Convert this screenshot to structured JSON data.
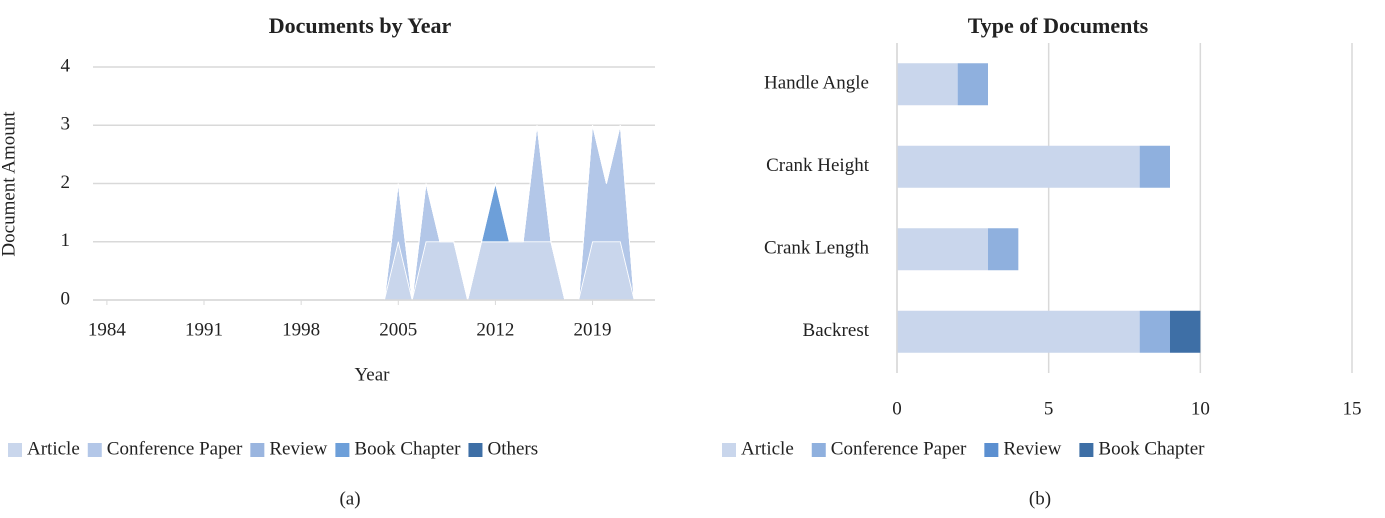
{
  "chart_data": [
    {
      "type": "area",
      "title": "Documents by Year",
      "x_label": "Year",
      "y_label": "Document Amount",
      "x": [
        1984,
        1985,
        1986,
        1987,
        1988,
        1989,
        1990,
        1991,
        1992,
        1993,
        1994,
        1995,
        1996,
        1997,
        1998,
        1999,
        2000,
        2001,
        2002,
        2003,
        2004,
        2005,
        2006,
        2007,
        2008,
        2009,
        2010,
        2011,
        2012,
        2013,
        2014,
        2015,
        2016,
        2017,
        2018,
        2019,
        2020,
        2021,
        2022,
        2023
      ],
      "xlim": [
        1983,
        2023.5
      ],
      "xticks": [
        1984,
        1991,
        1998,
        2005,
        2012,
        2019
      ],
      "ylim": [
        0,
        4
      ],
      "yticks": [
        0,
        1,
        2,
        3,
        4
      ],
      "grid": true,
      "legend": "bottom",
      "series": [
        {
          "name": "Article",
          "color": "#c9d6ec",
          "values": [
            0,
            0,
            0,
            0,
            0,
            0,
            0,
            0,
            0,
            0,
            0,
            0,
            0,
            0,
            0,
            0,
            0,
            0,
            0,
            0,
            0,
            1,
            0,
            1,
            1,
            1,
            0,
            1,
            1,
            1,
            1,
            1,
            1,
            0,
            0,
            1,
            1,
            1,
            0,
            0
          ]
        },
        {
          "name": "Conference Paper",
          "color": "#b3c7e8",
          "values": [
            0,
            0,
            0,
            0,
            0,
            0,
            0,
            0,
            0,
            0,
            0,
            0,
            0,
            0,
            0,
            0,
            0,
            0,
            0,
            0,
            0,
            1,
            0,
            1,
            0,
            0,
            0,
            0,
            0,
            0,
            0,
            2,
            0,
            0,
            0,
            2,
            1,
            2,
            0,
            0
          ]
        },
        {
          "name": "Review",
          "color": "#9ab5df",
          "values": [
            0,
            0,
            0,
            0,
            0,
            0,
            0,
            0,
            0,
            0,
            0,
            0,
            0,
            0,
            0,
            0,
            0,
            0,
            0,
            0,
            0,
            0,
            0,
            0,
            0,
            0,
            0,
            0,
            0,
            0,
            0,
            0,
            0,
            0,
            0,
            0,
            0,
            0,
            0,
            0
          ]
        },
        {
          "name": "Book Chapter",
          "color": "#6d9fd9",
          "values": [
            0,
            0,
            0,
            0,
            0,
            0,
            0,
            0,
            0,
            0,
            0,
            0,
            0,
            0,
            0,
            0,
            0,
            0,
            0,
            0,
            0,
            0,
            0,
            0,
            0,
            0,
            0,
            0,
            1,
            0,
            0,
            0,
            0,
            0,
            0,
            0,
            0,
            0,
            0,
            0
          ]
        },
        {
          "name": "Others",
          "color": "#3e6fa6",
          "values": [
            0,
            0,
            0,
            0,
            0,
            0,
            0,
            0,
            0,
            0,
            0,
            0,
            0,
            0,
            0,
            0,
            0,
            0,
            0,
            0,
            0,
            0,
            0,
            0,
            0,
            0,
            0,
            0,
            0,
            0,
            0,
            0,
            0,
            0,
            0,
            0,
            0,
            0,
            0,
            0
          ]
        }
      ],
      "caption": "(a)"
    },
    {
      "type": "hbar",
      "title": "Type of Documents",
      "categories": [
        "Backrest",
        "Crank Length",
        "Crank Height",
        "Handle Angle"
      ],
      "xlim": [
        0,
        15
      ],
      "xticks": [
        0,
        5,
        10,
        15
      ],
      "grid": true,
      "legend": "bottom",
      "series": [
        {
          "name": "Article",
          "color": "#c9d6ec",
          "values": [
            8,
            3,
            8,
            2
          ]
        },
        {
          "name": "Conference Paper",
          "color": "#8fb0de",
          "values": [
            1,
            1,
            1,
            1
          ]
        },
        {
          "name": "Review",
          "color": "#5b8fd0",
          "values": [
            0,
            0,
            0,
            0
          ]
        },
        {
          "name": "Book Chapter",
          "color": "#3e6fa6",
          "values": [
            1,
            0,
            0,
            0
          ]
        }
      ],
      "caption": "(b)"
    }
  ]
}
